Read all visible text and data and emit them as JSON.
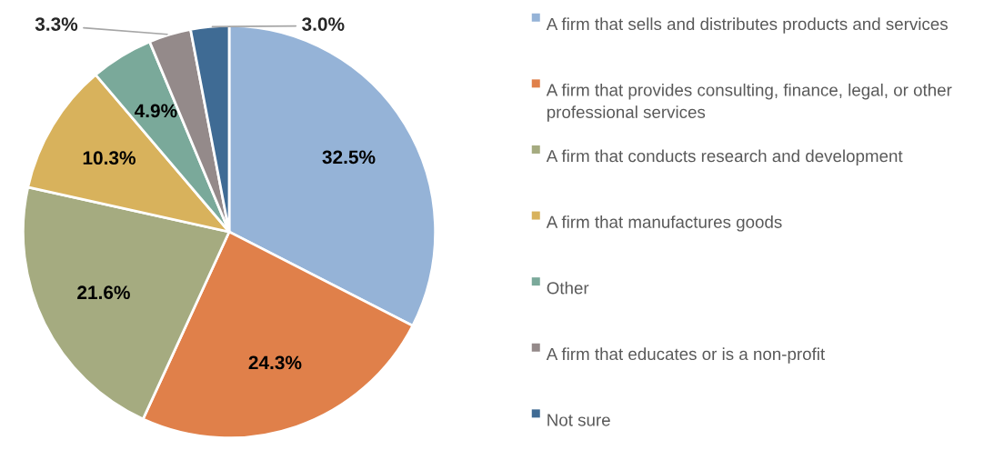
{
  "chart_data": {
    "type": "pie",
    "categories": [
      "A firm that sells and distributes products and services",
      "A firm that provides consulting, finance, legal, or other professional services",
      "A firm that conducts research and development",
      "A firm that manufactures goods",
      "Other",
      "A firm that educates or is a non-profit",
      "Not sure"
    ],
    "values": [
      32.5,
      24.3,
      21.6,
      10.3,
      4.9,
      3.3,
      3.0
    ],
    "colors": [
      "#95b3d7",
      "#e0804a",
      "#a5ab80",
      "#d8b25c",
      "#7aa99a",
      "#948a8a",
      "#3f6b94"
    ],
    "value_labels": [
      "32.5%",
      "24.3%",
      "21.6%",
      "10.3%",
      "4.9%",
      "3.3%",
      "3.0%"
    ],
    "legend": "right"
  }
}
